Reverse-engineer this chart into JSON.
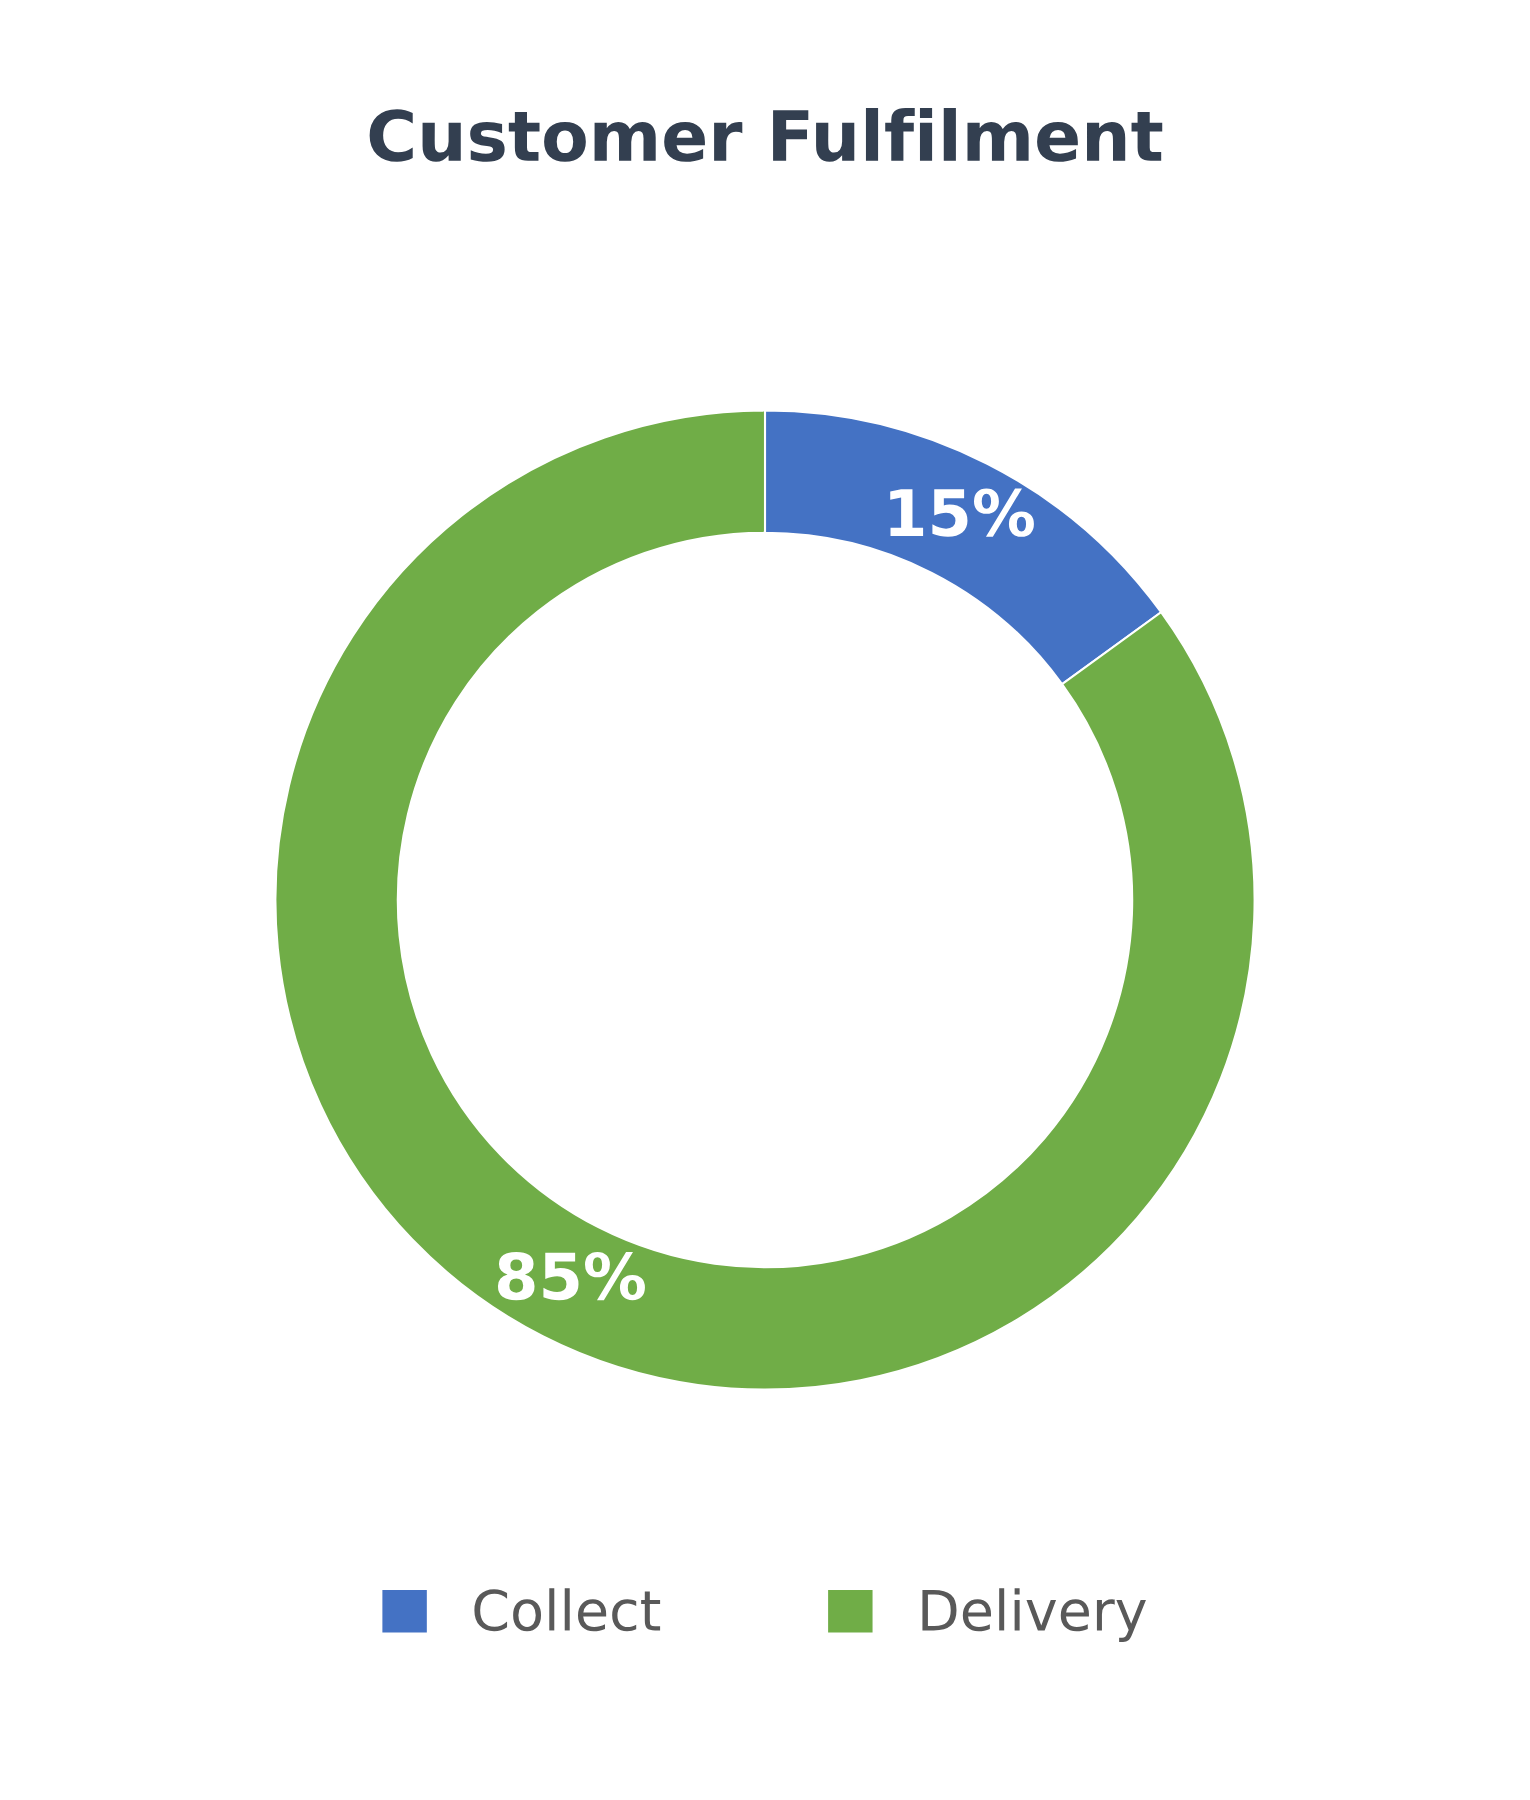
{
  "chart_data": {
    "type": "donut",
    "title": "Customer Fulfilment",
    "categories": [
      "Collect",
      "Delivery"
    ],
    "values": [
      15,
      85
    ],
    "colors": [
      "#4472c4",
      "#70ad47"
    ],
    "value_labels": [
      "15%",
      "85%"
    ],
    "legend": "bottom"
  }
}
